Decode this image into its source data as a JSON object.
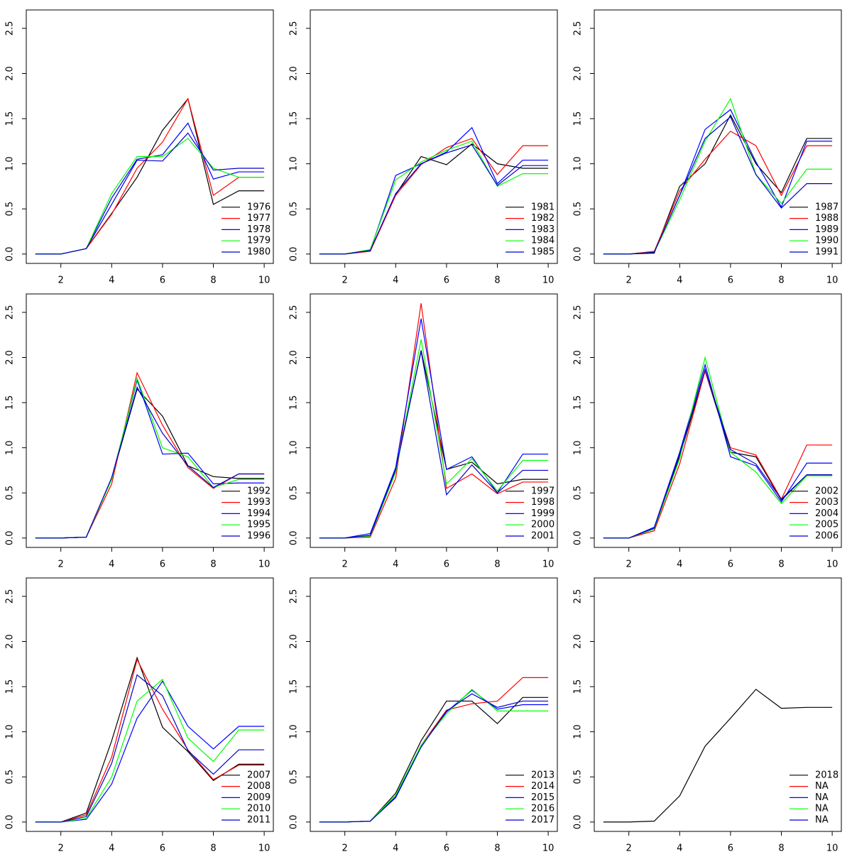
{
  "chart_data": [
    {
      "type": "line",
      "x": [
        1,
        2,
        3,
        4,
        5,
        6,
        7,
        8,
        9,
        10
      ],
      "xlim": [
        0.64,
        10.36
      ],
      "ylim": [
        -0.104,
        2.704
      ],
      "xticks": [
        2,
        4,
        6,
        8,
        10
      ],
      "yticks": [
        {
          "value": 0,
          "label": "0.0"
        },
        0.5,
        {
          "value": 1,
          "label": "1.0"
        },
        1.5,
        {
          "value": 2,
          "label": "2.0"
        },
        2.5
      ],
      "legend": "bottomright",
      "series": [
        {
          "name": "1976",
          "color": "#000000",
          "values": [
            0,
            0,
            0.06,
            0.45,
            0.85,
            1.37,
            1.72,
            0.55,
            0.7,
            0.7
          ]
        },
        {
          "name": "1977",
          "color": "#ff0000",
          "values": [
            0,
            0,
            0.06,
            0.44,
            0.95,
            1.24,
            1.72,
            0.65,
            0.85,
            0.85
          ]
        },
        {
          "name": "1978",
          "color": "#0000ff",
          "values": [
            0,
            0,
            0.06,
            0.62,
            1.05,
            1.1,
            1.45,
            0.83,
            0.91,
            0.91
          ]
        },
        {
          "name": "1979",
          "color": "#00ff00",
          "values": [
            0,
            0,
            0.06,
            0.67,
            1.08,
            1.08,
            1.28,
            0.95,
            0.85,
            0.85
          ]
        },
        {
          "name": "1980",
          "color": "#0000cd",
          "values": [
            0,
            0,
            0.06,
            0.55,
            1.04,
            1.03,
            1.34,
            0.93,
            0.95,
            0.95
          ]
        }
      ]
    },
    {
      "type": "line",
      "x": [
        1,
        2,
        3,
        4,
        5,
        6,
        7,
        8,
        9,
        10
      ],
      "xlim": [
        0.64,
        10.36
      ],
      "ylim": [
        -0.104,
        2.704
      ],
      "xticks": [
        2,
        4,
        6,
        8,
        10
      ],
      "yticks": [
        {
          "value": 0,
          "label": "0.0"
        },
        0.5,
        {
          "value": 1,
          "label": "1.0"
        },
        1.5,
        {
          "value": 2,
          "label": "2.0"
        },
        2.5
      ],
      "legend": "bottomright",
      "series": [
        {
          "name": "1981",
          "color": "#000000",
          "values": [
            0,
            0,
            0.04,
            0.66,
            1.08,
            0.99,
            1.22,
            1.0,
            0.95,
            0.95
          ]
        },
        {
          "name": "1982",
          "color": "#ff0000",
          "values": [
            0,
            0,
            0.03,
            0.65,
            0.99,
            1.18,
            1.28,
            0.88,
            1.2,
            1.2
          ]
        },
        {
          "name": "1983",
          "color": "#0000ff",
          "values": [
            0,
            0,
            0.04,
            0.87,
            1.0,
            1.13,
            1.4,
            0.78,
            1.04,
            1.04
          ]
        },
        {
          "name": "1984",
          "color": "#00ff00",
          "values": [
            0,
            0,
            0.05,
            0.82,
            1.02,
            1.15,
            1.25,
            0.75,
            0.89,
            0.89
          ]
        },
        {
          "name": "1985",
          "color": "#0000cd",
          "values": [
            0,
            0,
            0.04,
            0.67,
            1.0,
            1.12,
            1.21,
            0.76,
            0.98,
            0.98
          ]
        }
      ]
    },
    {
      "type": "line",
      "x": [
        1,
        2,
        3,
        4,
        5,
        6,
        7,
        8,
        9,
        10
      ],
      "xlim": [
        0.64,
        10.36
      ],
      "ylim": [
        -0.104,
        2.704
      ],
      "xticks": [
        2,
        4,
        6,
        8,
        10
      ],
      "yticks": [
        {
          "value": 0,
          "label": "0.0"
        },
        0.5,
        {
          "value": 1,
          "label": "1.0"
        },
        1.5,
        {
          "value": 2,
          "label": "2.0"
        },
        2.5
      ],
      "legend": "bottomright",
      "series": [
        {
          "name": "1987",
          "color": "#000000",
          "values": [
            0,
            0,
            0.01,
            0.75,
            1.0,
            1.54,
            1.0,
            0.68,
            1.28,
            1.28
          ]
        },
        {
          "name": "1988",
          "color": "#ff0000",
          "values": [
            0,
            0,
            0.03,
            0.7,
            1.05,
            1.36,
            1.2,
            0.65,
            1.2,
            1.2
          ]
        },
        {
          "name": "1989",
          "color": "#0000ff",
          "values": [
            0,
            0,
            0.02,
            0.65,
            1.38,
            1.6,
            1.02,
            0.52,
            1.25,
            1.25
          ]
        },
        {
          "name": "1990",
          "color": "#00ff00",
          "values": [
            0,
            0,
            0.02,
            0.6,
            1.25,
            1.72,
            0.88,
            0.56,
            0.94,
            0.94
          ]
        },
        {
          "name": "1991",
          "color": "#0000cd",
          "values": [
            0,
            0,
            0.02,
            0.65,
            1.28,
            1.52,
            0.88,
            0.51,
            0.78,
            0.78
          ]
        }
      ]
    },
    {
      "type": "line",
      "x": [
        1,
        2,
        3,
        4,
        5,
        6,
        7,
        8,
        9,
        10
      ],
      "xlim": [
        0.64,
        10.36
      ],
      "ylim": [
        -0.104,
        2.704
      ],
      "xticks": [
        2,
        4,
        6,
        8,
        10
      ],
      "yticks": [
        {
          "value": 0,
          "label": "0.0"
        },
        0.5,
        {
          "value": 1,
          "label": "1.0"
        },
        1.5,
        {
          "value": 2,
          "label": "2.0"
        },
        2.5
      ],
      "legend": "bottomright",
      "series": [
        {
          "name": "1992",
          "color": "#000000",
          "values": [
            0,
            0,
            0.01,
            0.66,
            1.65,
            1.35,
            0.8,
            0.68,
            0.66,
            0.66
          ]
        },
        {
          "name": "1993",
          "color": "#ff0000",
          "values": [
            0,
            0,
            0.01,
            0.6,
            1.83,
            1.25,
            0.78,
            0.55,
            0.71,
            0.71
          ]
        },
        {
          "name": "1994",
          "color": "#0000ff",
          "values": [
            0,
            0,
            0.01,
            0.66,
            1.75,
            0.93,
            0.94,
            0.6,
            0.61,
            0.61
          ]
        },
        {
          "name": "1995",
          "color": "#00ff00",
          "values": [
            0,
            0,
            0.01,
            0.65,
            1.77,
            1.0,
            0.9,
            0.56,
            0.65,
            0.65
          ]
        },
        {
          "name": "1996",
          "color": "#0000cd",
          "values": [
            0,
            0,
            0.01,
            0.67,
            1.67,
            1.16,
            0.8,
            0.56,
            0.71,
            0.71
          ]
        }
      ]
    },
    {
      "type": "line",
      "x": [
        1,
        2,
        3,
        4,
        5,
        6,
        7,
        8,
        9,
        10
      ],
      "xlim": [
        0.64,
        10.36
      ],
      "ylim": [
        -0.104,
        2.704
      ],
      "xticks": [
        2,
        4,
        6,
        8,
        10
      ],
      "yticks": [
        {
          "value": 0,
          "label": "0.0"
        },
        0.5,
        {
          "value": 1,
          "label": "1.0"
        },
        1.5,
        {
          "value": 2,
          "label": "2.0"
        },
        2.5
      ],
      "legend": "bottomright",
      "series": [
        {
          "name": "1997",
          "color": "#000000",
          "values": [
            0,
            0,
            0.03,
            0.75,
            2.08,
            0.76,
            0.84,
            0.6,
            0.65,
            0.65
          ]
        },
        {
          "name": "1998",
          "color": "#ff0000",
          "values": [
            0,
            0,
            0.01,
            0.66,
            2.6,
            0.55,
            0.71,
            0.49,
            0.62,
            0.62
          ]
        },
        {
          "name": "1999",
          "color": "#0000ff",
          "values": [
            0,
            0,
            0.05,
            0.78,
            2.43,
            0.76,
            0.9,
            0.5,
            0.93,
            0.93
          ]
        },
        {
          "name": "2000",
          "color": "#00ff00",
          "values": [
            0,
            0,
            0.02,
            0.73,
            2.2,
            0.6,
            0.88,
            0.52,
            0.86,
            0.86
          ]
        },
        {
          "name": "2001",
          "color": "#0000cd",
          "values": [
            0,
            0,
            0.03,
            0.76,
            2.07,
            0.48,
            0.81,
            0.5,
            0.75,
            0.75
          ]
        }
      ]
    },
    {
      "type": "line",
      "x": [
        1,
        2,
        3,
        4,
        5,
        6,
        7,
        8,
        9,
        10
      ],
      "xlim": [
        0.64,
        10.36
      ],
      "ylim": [
        -0.104,
        2.704
      ],
      "xticks": [
        2,
        4,
        6,
        8,
        10
      ],
      "yticks": [
        {
          "value": 0,
          "label": "0.0"
        },
        0.5,
        {
          "value": 1,
          "label": "1.0"
        },
        1.5,
        {
          "value": 2,
          "label": "2.0"
        },
        2.5
      ],
      "legend": "bottomright",
      "series": [
        {
          "name": "2002",
          "color": "#000000",
          "values": [
            0,
            0,
            0.1,
            0.9,
            1.85,
            0.95,
            0.9,
            0.42,
            0.7,
            0.7
          ]
        },
        {
          "name": "2003",
          "color": "#ff0000",
          "values": [
            0,
            0,
            0.08,
            0.82,
            1.85,
            1.0,
            0.92,
            0.43,
            1.03,
            1.03
          ]
        },
        {
          "name": "2004",
          "color": "#0000ff",
          "values": [
            0,
            0,
            0.12,
            0.95,
            1.92,
            0.9,
            0.8,
            0.4,
            0.83,
            0.83
          ]
        },
        {
          "name": "2005",
          "color": "#00ff00",
          "values": [
            0,
            0,
            0.1,
            0.88,
            2.0,
            0.95,
            0.73,
            0.38,
            0.69,
            0.69
          ]
        },
        {
          "name": "2006",
          "color": "#0000cd",
          "values": [
            0,
            0,
            0.11,
            0.93,
            1.87,
            0.98,
            0.82,
            0.43,
            0.7,
            0.7
          ]
        }
      ]
    },
    {
      "type": "line",
      "x": [
        1,
        2,
        3,
        4,
        5,
        6,
        7,
        8,
        9,
        10
      ],
      "xlim": [
        0.64,
        10.36
      ],
      "ylim": [
        -0.104,
        2.704
      ],
      "xticks": [
        2,
        4,
        6,
        8,
        10
      ],
      "yticks": [
        {
          "value": 0,
          "label": "0.0"
        },
        0.5,
        {
          "value": 1,
          "label": "1.0"
        },
        1.5,
        {
          "value": 2,
          "label": "2.0"
        },
        2.5
      ],
      "legend": "bottomright",
      "series": [
        {
          "name": "2007",
          "color": "#000000",
          "values": [
            0,
            0,
            0.1,
            0.9,
            1.82,
            1.05,
            0.78,
            0.46,
            0.64,
            0.64
          ]
        },
        {
          "name": "2008",
          "color": "#ff0000",
          "values": [
            0,
            0,
            0.08,
            0.72,
            1.8,
            1.25,
            0.8,
            0.47,
            0.63,
            0.63
          ]
        },
        {
          "name": "2009",
          "color": "#0000ff",
          "values": [
            0,
            0,
            0.03,
            0.42,
            1.15,
            1.56,
            1.06,
            0.81,
            1.06,
            1.06
          ]
        },
        {
          "name": "2010",
          "color": "#00ff00",
          "values": [
            0,
            0,
            0.04,
            0.5,
            1.34,
            1.58,
            0.93,
            0.67,
            1.02,
            1.02
          ]
        },
        {
          "name": "2011",
          "color": "#0000cd",
          "values": [
            0,
            0,
            0.06,
            0.65,
            1.63,
            1.4,
            0.79,
            0.53,
            0.8,
            0.8
          ]
        }
      ]
    },
    {
      "type": "line",
      "x": [
        1,
        2,
        3,
        4,
        5,
        6,
        7,
        8,
        9,
        10
      ],
      "xlim": [
        0.64,
        10.36
      ],
      "ylim": [
        -0.104,
        2.704
      ],
      "xticks": [
        2,
        4,
        6,
        8,
        10
      ],
      "yticks": [
        {
          "value": 0,
          "label": "0.0"
        },
        0.5,
        {
          "value": 1,
          "label": "1.0"
        },
        1.5,
        {
          "value": 2,
          "label": "2.0"
        },
        2.5
      ],
      "legend": "bottomright",
      "series": [
        {
          "name": "2013",
          "color": "#000000",
          "values": [
            0,
            0,
            0.01,
            0.32,
            0.9,
            1.34,
            1.34,
            1.09,
            1.38,
            1.38
          ]
        },
        {
          "name": "2014",
          "color": "#ff0000",
          "values": [
            0,
            0,
            0.01,
            0.28,
            0.85,
            1.24,
            1.31,
            1.34,
            1.6,
            1.6
          ]
        },
        {
          "name": "2015",
          "color": "#0000ff",
          "values": [
            0,
            0,
            0.01,
            0.28,
            0.84,
            1.22,
            1.46,
            1.25,
            1.3,
            1.3
          ]
        },
        {
          "name": "2016",
          "color": "#00ff00",
          "values": [
            0,
            0,
            0.01,
            0.3,
            0.85,
            1.2,
            1.47,
            1.23,
            1.23,
            1.23
          ]
        },
        {
          "name": "2017",
          "color": "#0000cd",
          "values": [
            0,
            0,
            0.01,
            0.27,
            0.83,
            1.23,
            1.42,
            1.27,
            1.34,
            1.34
          ]
        }
      ]
    },
    {
      "type": "line",
      "x": [
        1,
        2,
        3,
        4,
        5,
        6,
        7,
        8,
        9,
        10
      ],
      "xlim": [
        0.64,
        10.36
      ],
      "ylim": [
        -0.104,
        2.704
      ],
      "xticks": [
        2,
        4,
        6,
        8,
        10
      ],
      "yticks": [
        {
          "value": 0,
          "label": "0.0"
        },
        0.5,
        {
          "value": 1,
          "label": "1.0"
        },
        1.5,
        {
          "value": 2,
          "label": "2.0"
        },
        2.5
      ],
      "legend": "bottomright",
      "series": [
        {
          "name": "2018",
          "color": "#000000",
          "values": [
            0,
            0,
            0.01,
            0.29,
            0.84,
            1.15,
            1.47,
            1.26,
            1.27,
            1.27
          ]
        },
        {
          "name": "NA",
          "color": "#ff0000",
          "values": [
            null,
            null,
            null,
            null,
            null,
            null,
            null,
            null,
            null,
            null
          ]
        },
        {
          "name": "NA",
          "color": "#0000ff",
          "values": [
            null,
            null,
            null,
            null,
            null,
            null,
            null,
            null,
            null,
            null
          ]
        },
        {
          "name": "NA",
          "color": "#00ff00",
          "values": [
            null,
            null,
            null,
            null,
            null,
            null,
            null,
            null,
            null,
            null
          ]
        },
        {
          "name": "NA",
          "color": "#0000cd",
          "values": [
            null,
            null,
            null,
            null,
            null,
            null,
            null,
            null,
            null,
            null
          ]
        }
      ]
    }
  ]
}
